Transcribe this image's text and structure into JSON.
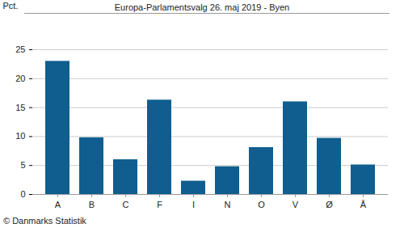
{
  "chart_data": {
    "type": "bar",
    "title": "Europa-Parlamentsvalg 26. maj 2019 - Byen",
    "y_label": "Pct.",
    "caption": "© Danmarks Statistik",
    "categories": [
      "A",
      "B",
      "C",
      "F",
      "I",
      "N",
      "O",
      "V",
      "Ø",
      "Å"
    ],
    "values": [
      23.0,
      9.8,
      6.0,
      16.3,
      2.3,
      4.8,
      8.1,
      16.0,
      9.7,
      5.1
    ],
    "color": "#0f5e8f",
    "ylim": [
      0,
      25
    ],
    "yticks": [
      0,
      5,
      10,
      15,
      20,
      25
    ],
    "grid": true
  }
}
